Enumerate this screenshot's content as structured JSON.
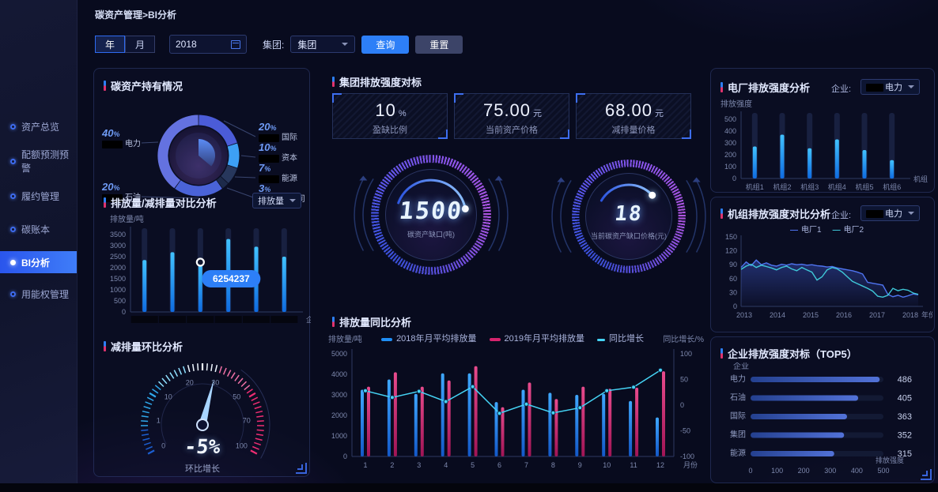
{
  "breadcrumb": "碳资产管理>BI分析",
  "filters": {
    "year": "年",
    "month": "月",
    "date": "2018",
    "group_label": "集团",
    "group_value": "集团",
    "query": "查询",
    "reset": "重置"
  },
  "sidebar": {
    "items": [
      "资产总览",
      "配额预测预警",
      "履约管理",
      "碳账本",
      "BI分析",
      "用能权管理"
    ],
    "active": "BI分析"
  },
  "sections": {
    "holdings": {
      "title": "碳资产持有情况"
    },
    "compare": {
      "title": "排放量/减排量对比分析",
      "select": "排放量"
    },
    "mom": {
      "title": "减排量环比分析"
    },
    "benchmark": {
      "title": "集团排放强度对标",
      "cards": [
        {
          "value": "10",
          "unit": "%",
          "label": "盈缺比例"
        },
        {
          "value": "75.00",
          "unit": "元",
          "label": "当前资产价格"
        },
        {
          "value": "68.00",
          "unit": "元",
          "label": "减排量价格"
        }
      ]
    },
    "yoy": {
      "title": "排放量同比分析"
    },
    "plant": {
      "title": "电厂排放强度分析",
      "select_label": "企业",
      "select_value": "电力"
    },
    "unit": {
      "title": "机组排放强度对比分析",
      "select_label": "企业",
      "select_value": "电力"
    },
    "top5": {
      "title": "企业排放强度对标（TOP5）"
    }
  },
  "accent_colors": {
    "blue": "#2d7ff7",
    "pink": "#e0336e",
    "cyan": "#45d4f5",
    "bar_blue": "#1f8ef5"
  },
  "chart_data": [
    {
      "id": "holdings_donut",
      "type": "pie",
      "title": "碳资产持有情况",
      "unit": "%",
      "slices": [
        {
          "name": "国际",
          "value": 20,
          "color": "#4b5cd8",
          "redacted_name": true
        },
        {
          "name": "资本",
          "value": 10,
          "color": "#3da0f5",
          "redacted_name": true
        },
        {
          "name": "能源",
          "value": 7,
          "color": "#27375c",
          "redacted_name": true
        },
        {
          "name": "分公司",
          "value": 3,
          "color": "#1d2a4a",
          "redacted_name": true
        },
        {
          "name": "石油",
          "value": 20,
          "color": "#4a63d8",
          "redacted_name": true
        },
        {
          "name": "电力",
          "value": 40,
          "color": "#6472e0",
          "redacted_name": true
        }
      ],
      "label_sides": {
        "left": [
          "电力",
          "石油"
        ],
        "right": [
          "国际",
          "资本",
          "能源",
          "分公司"
        ]
      }
    },
    {
      "id": "compare_bar",
      "type": "bar",
      "ylabel": "排放量/吨",
      "xlabel": "企业",
      "ylim": [
        0,
        3500
      ],
      "ytick_step": 500,
      "categories_redacted": true,
      "values": [
        2350,
        2700,
        2250,
        3300,
        2950,
        2500
      ],
      "tooltip": {
        "index": 2,
        "text": "6254237"
      }
    },
    {
      "id": "mom_gauge",
      "type": "gauge",
      "min": 0,
      "max": 100,
      "tick_labels": [
        0,
        1,
        10,
        20,
        30,
        50,
        70,
        100
      ],
      "value_text": "-5%",
      "caption": "环比增长",
      "needle_fraction": 0.56
    },
    {
      "id": "gap_gauge",
      "type": "stat-ring",
      "value": "1500",
      "label": "碳资产缺口(吨)"
    },
    {
      "id": "price_gauge",
      "type": "stat-ring",
      "value": "18",
      "label": "当前碳资产缺口价格(元)"
    },
    {
      "id": "yoy_combo",
      "type": "bar+line",
      "categories": [
        1,
        2,
        3,
        4,
        5,
        6,
        7,
        8,
        9,
        10,
        11,
        12
      ],
      "xlabel": "月份",
      "left_ylabel": "排放量/吨",
      "right_ylabel": "同比增长/%",
      "left_ylim": [
        0,
        5000
      ],
      "right_ylim": [
        -100,
        100
      ],
      "series": [
        {
          "name": "2018年月平均排放量",
          "type": "bar",
          "color": "#1f8ef5",
          "values": [
            3250,
            3750,
            3050,
            4050,
            4050,
            2650,
            3250,
            3100,
            3000,
            3050,
            2700,
            1900
          ]
        },
        {
          "name": "2019年月平均排放量",
          "type": "bar",
          "color": "#d6246e",
          "values": [
            3400,
            4100,
            3400,
            3700,
            4400,
            2400,
            3600,
            2800,
            3400,
            3300,
            3350,
            4150
          ]
        },
        {
          "name": "同比增长",
          "type": "line",
          "axis": "right",
          "color": "#45d4f5",
          "values": [
            28,
            15,
            27,
            7,
            36,
            -16,
            2,
            -15,
            -5,
            28,
            35,
            68
          ]
        }
      ]
    },
    {
      "id": "plant_bar",
      "type": "bar",
      "ylabel": "排放强度",
      "xlabel": "机组",
      "ylim": [
        0,
        500
      ],
      "ytick_step": 100,
      "categories": [
        "机组1",
        "机组2",
        "机组3",
        "机组4",
        "机组5",
        "机组6"
      ],
      "values": [
        270,
        370,
        255,
        330,
        240,
        155
      ]
    },
    {
      "id": "unit_lines",
      "type": "line",
      "ylabel": "排放强度",
      "xlabel": "年份",
      "ylim": [
        0,
        150
      ],
      "ytick_step": 30,
      "x_ticks": [
        2013,
        2014,
        2015,
        2016,
        2017,
        2018
      ],
      "series": [
        {
          "name": "电厂1",
          "color": "#4f74f0",
          "area": true,
          "values": [
            84,
            96,
            88,
            100,
            90,
            94,
            89,
            87,
            91,
            89,
            92,
            90,
            91,
            89,
            90,
            88,
            87,
            85,
            86,
            83,
            81,
            79,
            77,
            74,
            70,
            52,
            50,
            48,
            46,
            26,
            21,
            24,
            20,
            23,
            27,
            25
          ]
        },
        {
          "name": "电厂2",
          "color": "#3fc8d8",
          "values": [
            80,
            87,
            91,
            84,
            89,
            86,
            83,
            79,
            84,
            87,
            81,
            77,
            84,
            79,
            74,
            57,
            64,
            79,
            84,
            81,
            74,
            64,
            54,
            49,
            44,
            39,
            33,
            22,
            20,
            24,
            39,
            34,
            37,
            35,
            29,
            26
          ]
        }
      ]
    },
    {
      "id": "top5_hbar",
      "type": "hbar",
      "ylabel": "企业",
      "xlabel": "排放强度",
      "xlim": [
        0,
        500
      ],
      "xtick_step": 100,
      "categories": [
        "电力",
        "石油",
        "国际",
        "集团",
        "能源"
      ],
      "values": [
        486,
        405,
        363,
        352,
        315
      ]
    }
  ]
}
